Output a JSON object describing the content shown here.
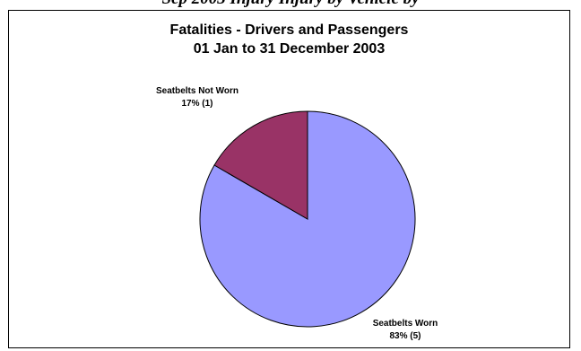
{
  "page": {
    "top_fragment": "Sep 2003 Injury Injury by Vehicle by"
  },
  "chart_data": {
    "type": "pie",
    "title": "Fatalities - Drivers and Passengers",
    "subtitle": "01 Jan to 31 December 2003",
    "slices": [
      {
        "label": "Seatbelts Worn",
        "value_label": "83% (5)",
        "percent": 83,
        "count": 5,
        "color": "#9999ff"
      },
      {
        "label": "Seatbelts Not Worn",
        "value_label": "17% (1)",
        "percent": 17,
        "count": 1,
        "color": "#993366"
      }
    ],
    "legend": false
  }
}
